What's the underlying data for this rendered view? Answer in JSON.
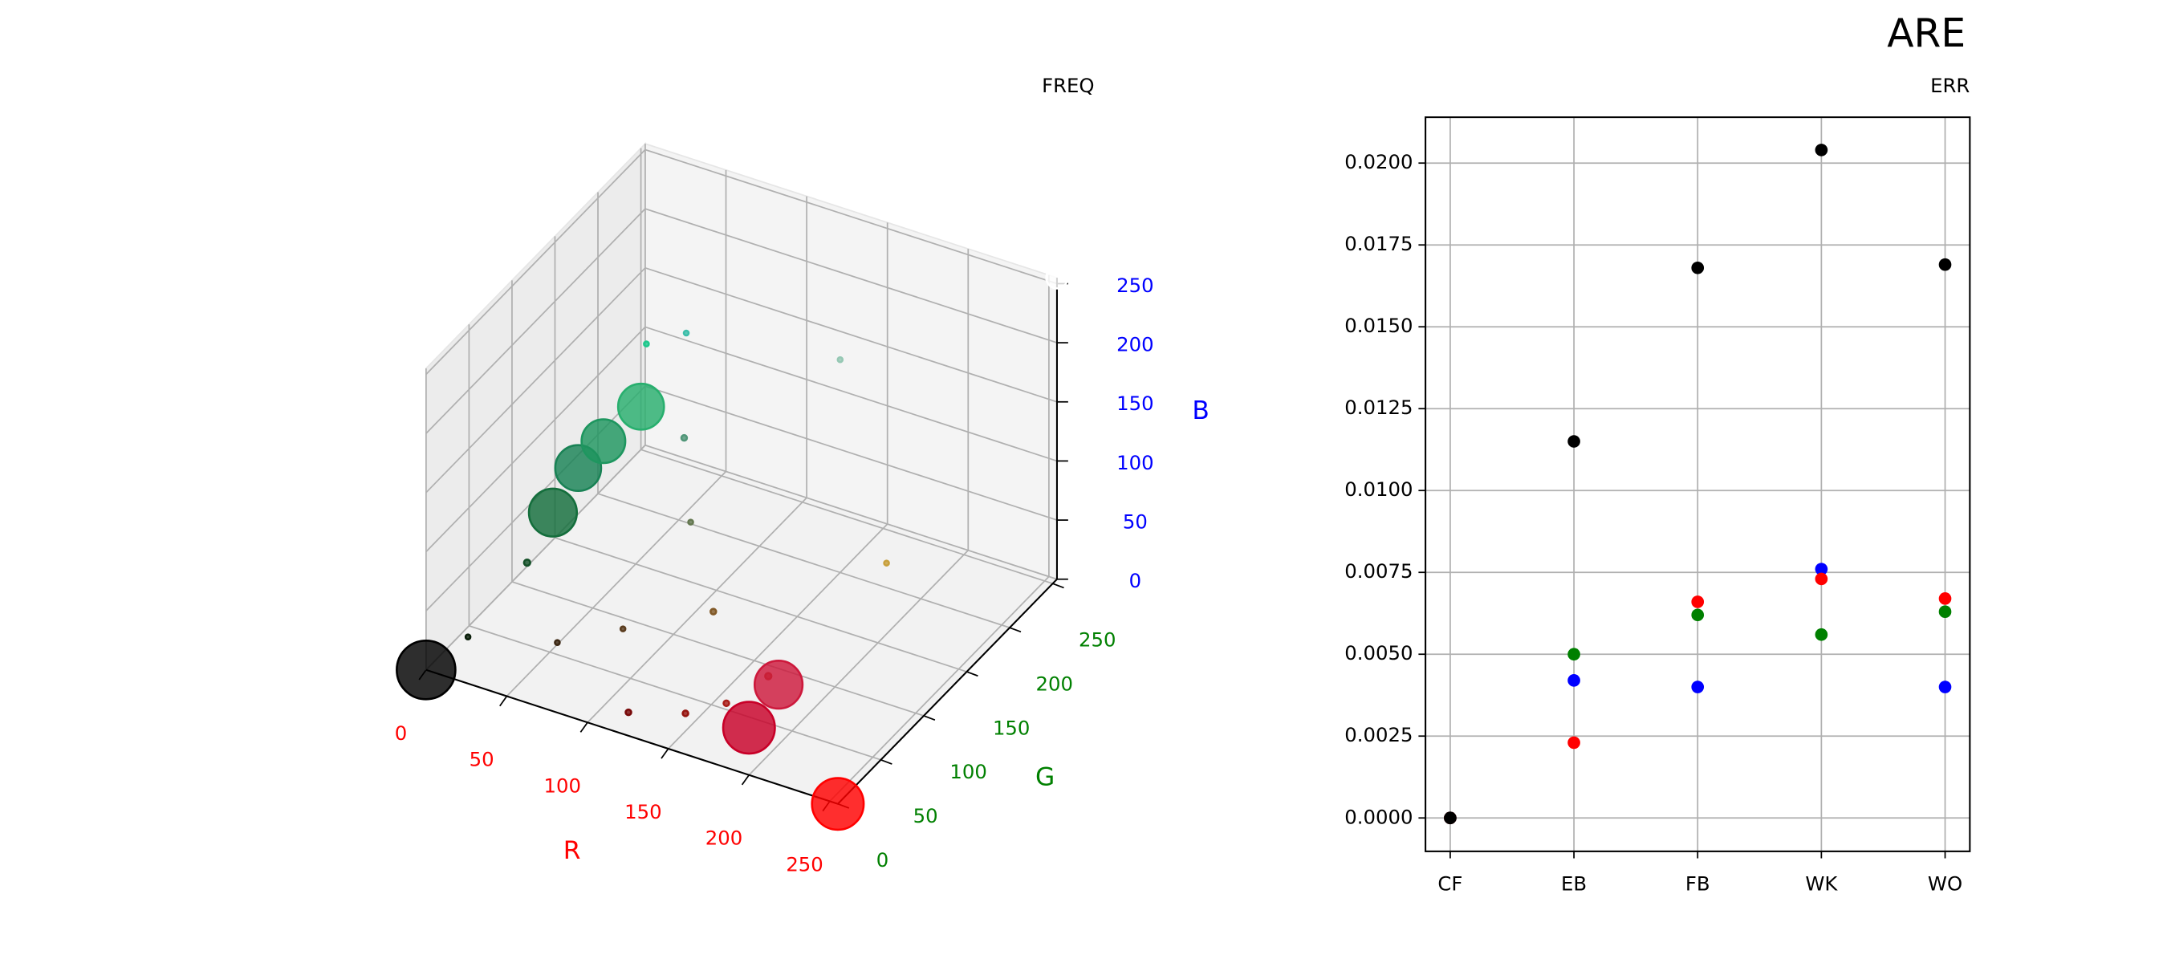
{
  "title": "ARE",
  "chart_data": [
    {
      "type": "scatter3d",
      "title": "FREQ",
      "xlabel": "R",
      "ylabel": "G",
      "zlabel": "B",
      "xaxis_color": "red",
      "yaxis_color": "green",
      "zaxis_color": "blue",
      "xlim": [
        0,
        255
      ],
      "ylim": [
        0,
        255
      ],
      "zlim": [
        0,
        255
      ],
      "xticks": [
        0,
        50,
        100,
        150,
        200,
        250
      ],
      "yticks": [
        0,
        50,
        100,
        150,
        200,
        250
      ],
      "zticks": [
        0,
        50,
        100,
        150,
        200,
        250
      ],
      "grid": true,
      "points": {
        "x": [
          120,
          150,
          170,
          60,
          90,
          20,
          10,
          100,
          80,
          60,
          150,
          200,
          30,
          130,
          180,
          0,
          255,
          200,
          205,
          20,
          25,
          30,
          40,
          255
        ],
        "y": [
          10,
          20,
          30,
          40,
          60,
          80,
          30,
          120,
          150,
          190,
          200,
          160,
          200,
          90,
          60,
          0,
          0,
          0,
          25,
          110,
          130,
          150,
          175,
          255
        ],
        "z": [
          10,
          15,
          25,
          20,
          30,
          40,
          10,
          80,
          120,
          170,
          180,
          60,
          140,
          40,
          30,
          0,
          0,
          40,
          60,
          60,
          85,
          95,
          110,
          255
        ],
        "sizes": [
          8,
          8,
          8,
          6,
          6,
          10,
          6,
          6,
          8,
          6,
          6,
          6,
          6,
          8,
          10,
          900,
          700,
          700,
          600,
          600,
          550,
          500,
          550,
          120
        ]
      }
    },
    {
      "type": "scatter",
      "title": "ERR",
      "categories": [
        "CF",
        "EB",
        "FB",
        "WK",
        "WO"
      ],
      "xlim": [
        -0.2,
        4.2
      ],
      "ylim": [
        -0.00102,
        0.0214
      ],
      "yticks": [
        {
          "value": 0,
          "label": "0.0000"
        },
        {
          "value": 0.0025,
          "label": "0.0025"
        },
        {
          "value": 0.005,
          "label": "0.0050"
        },
        {
          "value": 0.0075,
          "label": "0.0075"
        },
        {
          "value": 0.01,
          "label": "0.0100"
        },
        {
          "value": 0.0125,
          "label": "0.0125"
        },
        {
          "value": 0.015,
          "label": "0.0150"
        },
        {
          "value": 0.0175,
          "label": "0.0175"
        },
        {
          "value": 0.02,
          "label": "0.0200"
        }
      ],
      "grid": true,
      "series": [
        {
          "color": "#0000ff",
          "values": [
            0,
            0.0042,
            0.004,
            0.0076,
            0.004
          ]
        },
        {
          "color": "#008000",
          "values": [
            0,
            0.005,
            0.0062,
            0.0056,
            0.0063
          ]
        },
        {
          "color": "#ff0000",
          "values": [
            0,
            0.0023,
            0.0066,
            0.0073,
            0.0067
          ]
        },
        {
          "color": "#000000",
          "values": [
            0,
            0.0115,
            0.0168,
            0.0204,
            0.0169
          ]
        }
      ]
    }
  ]
}
